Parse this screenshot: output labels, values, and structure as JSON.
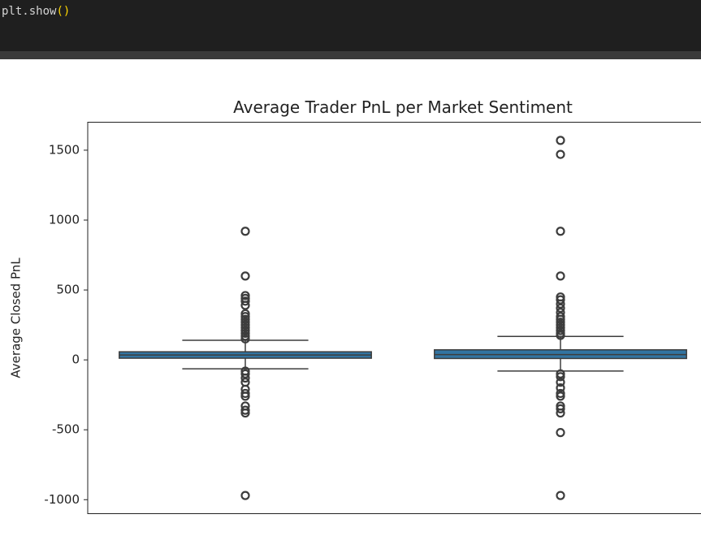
{
  "code": {
    "tokens": [
      "plt.show",
      "()"
    ]
  },
  "chart_data": {
    "type": "box",
    "title": "Average Trader PnL per Market Sentiment",
    "ylabel": "Average Closed PnL",
    "color": "#3274a1",
    "ylim": [
      -1100,
      1700
    ],
    "yticks": [
      -1000,
      -500,
      0,
      500,
      1000,
      1500
    ],
    "boxes": [
      {
        "whislo": -64,
        "q1": 12,
        "med": 35,
        "q3": 58,
        "whishi": 140,
        "fliers": [
          920,
          600,
          460,
          440,
          420,
          390,
          330,
          310,
          290,
          270,
          250,
          230,
          210,
          190,
          170,
          150,
          -80,
          -100,
          -130,
          -160,
          -210,
          -240,
          -260,
          -330,
          -360,
          -380,
          -970
        ]
      },
      {
        "whislo": -80,
        "q1": 10,
        "med": 38,
        "q3": 72,
        "whishi": 168,
        "fliers": [
          1570,
          1470,
          920,
          600,
          450,
          430,
          400,
          370,
          340,
          310,
          290,
          270,
          250,
          230,
          210,
          190,
          175,
          -100,
          -120,
          -160,
          -200,
          -240,
          -260,
          -330,
          -350,
          -380,
          -520,
          -970
        ]
      }
    ]
  }
}
